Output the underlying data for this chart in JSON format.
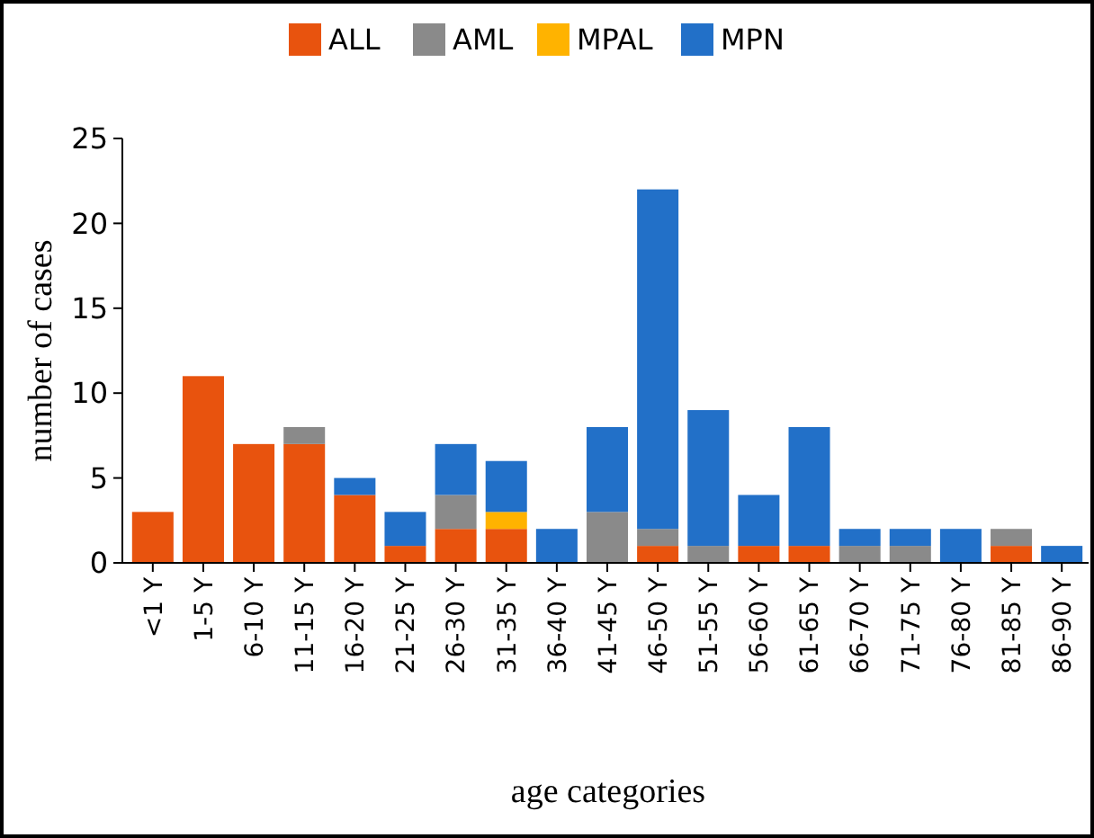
{
  "chart_data": {
    "type": "bar",
    "stacked": true,
    "xlabel": "age categories",
    "ylabel": "number of cases",
    "categories": [
      "<1 Y",
      "1-5 Y",
      "6-10 Y",
      "11-15 Y",
      "16-20 Y",
      "21-25 Y",
      "26-30 Y",
      "31-35 Y",
      "36-40 Y",
      "41-45 Y",
      "46-50 Y",
      "51-55 Y",
      "56-60 Y",
      "61-65 Y",
      "66-70 Y",
      "71-75 Y",
      "76-80 Y",
      "81-85 Y",
      "86-90 Y"
    ],
    "series": [
      {
        "name": "ALL",
        "color": "#e8530e",
        "values": [
          3,
          11,
          7,
          7,
          4,
          1,
          2,
          2,
          0,
          0,
          1,
          0,
          1,
          1,
          0,
          0,
          0,
          1,
          0
        ]
      },
      {
        "name": "AML",
        "color": "#8a8a8a",
        "values": [
          0,
          0,
          0,
          1,
          0,
          0,
          2,
          0,
          0,
          3,
          1,
          1,
          0,
          0,
          1,
          1,
          0,
          1,
          0
        ]
      },
      {
        "name": "MPAL",
        "color": "#ffb300",
        "values": [
          0,
          0,
          0,
          0,
          0,
          0,
          0,
          1,
          0,
          0,
          0,
          0,
          0,
          0,
          0,
          0,
          0,
          0,
          0
        ]
      },
      {
        "name": "MPN",
        "color": "#2270c8",
        "values": [
          0,
          0,
          0,
          0,
          1,
          2,
          3,
          3,
          2,
          5,
          20,
          8,
          3,
          7,
          1,
          1,
          2,
          0,
          1
        ]
      }
    ],
    "ylim": [
      0,
      25
    ],
    "yticks": [
      0,
      5,
      10,
      15,
      20,
      25
    ],
    "grid": false,
    "legend": "top"
  }
}
